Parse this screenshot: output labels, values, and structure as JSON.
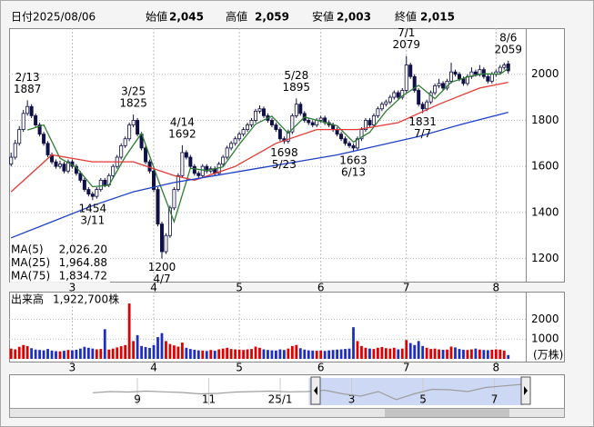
{
  "header": {
    "items": [
      {
        "label": "日付",
        "value": "2025/08/06",
        "color": "#000000"
      },
      {
        "label": "始値",
        "value": "2,045",
        "color": "#000000"
      },
      {
        "label": "高値",
        "value": "2,059",
        "color": "#e00000"
      },
      {
        "label": "安値",
        "value": "2,003",
        "color": "#008000"
      },
      {
        "label": "終値",
        "value": "2,015",
        "color": "#000000"
      }
    ]
  },
  "chart_data": [
    {
      "type": "candlestick",
      "up_color": "#ffffff",
      "down_color": "#101048",
      "xlim": [
        -0.5,
        126.3
      ],
      "xticks": [
        {
          "value": 15,
          "label": "3"
        },
        {
          "value": 35,
          "label": "4"
        },
        {
          "value": 56,
          "label": "5"
        },
        {
          "value": 76,
          "label": "6"
        },
        {
          "value": 97,
          "label": "7"
        },
        {
          "value": 119,
          "label": "8"
        }
      ],
      "ylim": [
        1100,
        2200
      ],
      "yticks": [
        1200,
        1400,
        1600,
        1800,
        2000
      ],
      "grid": true,
      "candles": [
        [
          1610,
          1660,
          1600,
          1640
        ],
        [
          1640,
          1715,
          1630,
          1700
        ],
        [
          1700,
          1775,
          1690,
          1760
        ],
        [
          1760,
          1845,
          1750,
          1830
        ],
        [
          1830,
          1887,
          1820,
          1860
        ],
        [
          1860,
          1870,
          1810,
          1820
        ],
        [
          1820,
          1830,
          1770,
          1780
        ],
        [
          1780,
          1790,
          1730,
          1740
        ],
        [
          1740,
          1750,
          1690,
          1700
        ],
        [
          1700,
          1710,
          1640,
          1650
        ],
        [
          1650,
          1660,
          1610,
          1620
        ],
        [
          1620,
          1630,
          1590,
          1600
        ],
        [
          1600,
          1625,
          1590,
          1610
        ],
        [
          1610,
          1620,
          1570,
          1580
        ],
        [
          1580,
          1630,
          1570,
          1620
        ],
        [
          1620,
          1630,
          1590,
          1600
        ],
        [
          1600,
          1610,
          1560,
          1570
        ],
        [
          1570,
          1580,
          1530,
          1540
        ],
        [
          1540,
          1550,
          1490,
          1500
        ],
        [
          1500,
          1510,
          1470,
          1480
        ],
        [
          1480,
          1490,
          1454,
          1470
        ],
        [
          1470,
          1510,
          1460,
          1500
        ],
        [
          1500,
          1550,
          1490,
          1540
        ],
        [
          1540,
          1550,
          1510,
          1520
        ],
        [
          1520,
          1570,
          1510,
          1560
        ],
        [
          1560,
          1610,
          1550,
          1600
        ],
        [
          1600,
          1650,
          1590,
          1640
        ],
        [
          1640,
          1700,
          1630,
          1690
        ],
        [
          1690,
          1730,
          1680,
          1720
        ],
        [
          1720,
          1790,
          1710,
          1780
        ],
        [
          1780,
          1825,
          1770,
          1800
        ],
        [
          1800,
          1810,
          1730,
          1740
        ],
        [
          1740,
          1750,
          1670,
          1680
        ],
        [
          1680,
          1690,
          1610,
          1620
        ],
        [
          1620,
          1630,
          1570,
          1580
        ],
        [
          1580,
          1590,
          1490,
          1500
        ],
        [
          1500,
          1510,
          1340,
          1350
        ],
        [
          1350,
          1360,
          1200,
          1230
        ],
        [
          1230,
          1310,
          1220,
          1300
        ],
        [
          1300,
          1430,
          1290,
          1420
        ],
        [
          1420,
          1510,
          1410,
          1500
        ],
        [
          1500,
          1570,
          1490,
          1560
        ],
        [
          1560,
          1692,
          1550,
          1660
        ],
        [
          1660,
          1670,
          1630,
          1640
        ],
        [
          1640,
          1650,
          1590,
          1600
        ],
        [
          1600,
          1610,
          1560,
          1570
        ],
        [
          1570,
          1580,
          1550,
          1560
        ],
        [
          1560,
          1610,
          1550,
          1600
        ],
        [
          1600,
          1610,
          1570,
          1580
        ],
        [
          1580,
          1600,
          1570,
          1590
        ],
        [
          1590,
          1600,
          1560,
          1570
        ],
        [
          1570,
          1620,
          1560,
          1610
        ],
        [
          1610,
          1650,
          1600,
          1640
        ],
        [
          1640,
          1690,
          1630,
          1680
        ],
        [
          1680,
          1710,
          1670,
          1700
        ],
        [
          1700,
          1730,
          1690,
          1720
        ],
        [
          1720,
          1750,
          1710,
          1740
        ],
        [
          1740,
          1770,
          1730,
          1760
        ],
        [
          1760,
          1790,
          1750,
          1780
        ],
        [
          1780,
          1810,
          1770,
          1800
        ],
        [
          1800,
          1850,
          1790,
          1840
        ],
        [
          1840,
          1865,
          1830,
          1850
        ],
        [
          1850,
          1860,
          1810,
          1820
        ],
        [
          1820,
          1830,
          1790,
          1800
        ],
        [
          1800,
          1810,
          1770,
          1780
        ],
        [
          1780,
          1790,
          1750,
          1760
        ],
        [
          1760,
          1770,
          1710,
          1720
        ],
        [
          1720,
          1730,
          1698,
          1710
        ],
        [
          1710,
          1760,
          1700,
          1750
        ],
        [
          1750,
          1830,
          1740,
          1820
        ],
        [
          1820,
          1895,
          1810,
          1870
        ],
        [
          1870,
          1880,
          1820,
          1830
        ],
        [
          1830,
          1840,
          1790,
          1800
        ],
        [
          1800,
          1810,
          1780,
          1790
        ],
        [
          1790,
          1800,
          1770,
          1780
        ],
        [
          1780,
          1810,
          1770,
          1800
        ],
        [
          1800,
          1820,
          1790,
          1810
        ],
        [
          1810,
          1820,
          1780,
          1790
        ],
        [
          1790,
          1800,
          1770,
          1780
        ],
        [
          1780,
          1790,
          1750,
          1760
        ],
        [
          1760,
          1770,
          1730,
          1740
        ],
        [
          1740,
          1750,
          1710,
          1720
        ],
        [
          1720,
          1730,
          1690,
          1700
        ],
        [
          1700,
          1710,
          1680,
          1690
        ],
        [
          1690,
          1700,
          1663,
          1680
        ],
        [
          1680,
          1730,
          1670,
          1720
        ],
        [
          1720,
          1770,
          1710,
          1760
        ],
        [
          1760,
          1810,
          1750,
          1800
        ],
        [
          1800,
          1810,
          1770,
          1780
        ],
        [
          1780,
          1830,
          1770,
          1820
        ],
        [
          1820,
          1860,
          1810,
          1850
        ],
        [
          1850,
          1880,
          1840,
          1870
        ],
        [
          1870,
          1890,
          1860,
          1880
        ],
        [
          1880,
          1910,
          1870,
          1900
        ],
        [
          1900,
          1930,
          1890,
          1920
        ],
        [
          1920,
          1930,
          1890,
          1900
        ],
        [
          1900,
          1940,
          1890,
          1930
        ],
        [
          1930,
          2079,
          1920,
          2040
        ],
        [
          2040,
          2050,
          1980,
          1990
        ],
        [
          1990,
          2000,
          1920,
          1930
        ],
        [
          1930,
          1940,
          1860,
          1870
        ],
        [
          1870,
          1880,
          1831,
          1850
        ],
        [
          1850,
          1890,
          1840,
          1880
        ],
        [
          1880,
          1930,
          1870,
          1920
        ],
        [
          1920,
          1960,
          1910,
          1950
        ],
        [
          1950,
          1980,
          1940,
          1960
        ],
        [
          1960,
          1970,
          1930,
          1940
        ],
        [
          1940,
          1980,
          1930,
          1970
        ],
        [
          1970,
          2050,
          1960,
          2010
        ],
        [
          2010,
          2020,
          1990,
          2000
        ],
        [
          2000,
          2010,
          1970,
          1980
        ],
        [
          1980,
          1990,
          1950,
          1960
        ],
        [
          1960,
          2000,
          1950,
          1990
        ],
        [
          1990,
          2030,
          1980,
          2010
        ],
        [
          2010,
          2020,
          1990,
          2000
        ],
        [
          2000,
          2040,
          1990,
          2020
        ],
        [
          2020,
          2030,
          1980,
          1990
        ],
        [
          1990,
          2000,
          1960,
          1970
        ],
        [
          1970,
          2010,
          1960,
          2000
        ],
        [
          2000,
          2020,
          1990,
          2010
        ],
        [
          2010,
          2040,
          2000,
          2030
        ],
        [
          2030,
          2050,
          2020,
          2040
        ],
        [
          2045,
          2059,
          2003,
          2015
        ]
      ],
      "series": [
        {
          "name": "MA(5)",
          "color": "#2e7d32",
          "last_label": "2,026.20",
          "x": [
            4,
            8,
            12,
            16,
            20,
            24,
            28,
            32,
            36,
            40,
            44,
            48,
            52,
            56,
            60,
            64,
            68,
            72,
            76,
            80,
            84,
            88,
            92,
            96,
            100,
            104,
            108,
            112,
            116,
            120,
            122
          ],
          "values": [
            1758,
            1780,
            1636,
            1596,
            1512,
            1518,
            1642,
            1744,
            1546,
            1360,
            1592,
            1582,
            1598,
            1696,
            1784,
            1818,
            1744,
            1814,
            1796,
            1776,
            1706,
            1748,
            1840,
            1906,
            1952,
            1894,
            1966,
            1988,
            2002,
            2000,
            2026.2
          ]
        },
        {
          "name": "MA(25)",
          "color": "#e53935",
          "last_label": "1,964.88",
          "x": [
            0,
            10,
            20,
            30,
            40,
            45,
            55,
            65,
            75,
            85,
            95,
            105,
            115,
            122
          ],
          "values": [
            1490,
            1650,
            1620,
            1620,
            1560,
            1540,
            1600,
            1700,
            1760,
            1760,
            1790,
            1870,
            1940,
            1964.88
          ]
        },
        {
          "name": "MA(75)",
          "color": "#1e40c8",
          "last_label": "1,834.72",
          "x": [
            0,
            10,
            20,
            30,
            40,
            50,
            60,
            70,
            80,
            90,
            100,
            110,
            122
          ],
          "values": [
            1290,
            1360,
            1430,
            1490,
            1530,
            1560,
            1590,
            1620,
            1650,
            1690,
            1730,
            1780,
            1834.72
          ]
        }
      ],
      "annotations": [
        {
          "x": 4,
          "label": "2/13",
          "value": 1887
        },
        {
          "x": 20,
          "label": "3/11",
          "value": 1454
        },
        {
          "x": 30,
          "label": "3/25",
          "value": 1825
        },
        {
          "x": 37,
          "label": "4/7",
          "value": 1200
        },
        {
          "x": 42,
          "label": "4/14",
          "value": 1692
        },
        {
          "x": 67,
          "label": "5/23",
          "value": 1698
        },
        {
          "x": 70,
          "label": "5/28",
          "value": 1895
        },
        {
          "x": 84,
          "label": "6/13",
          "value": 1663
        },
        {
          "x": 97,
          "label": "7/1",
          "value": 2079
        },
        {
          "x": 101,
          "label": "7/7",
          "value": 1831
        },
        {
          "x": 122,
          "label": "8/6",
          "value": 2059
        }
      ]
    },
    {
      "type": "bar",
      "title": "出来高",
      "subtitle": "1,922,700株",
      "unit": "(万株)",
      "up_color": "#e00000",
      "down_color": "#1e2fbf",
      "ylim": [
        0,
        3400
      ],
      "yticks": [
        1000,
        2000
      ],
      "grid": true,
      "values": [
        520,
        480,
        610,
        700,
        650,
        540,
        470,
        450,
        430,
        500,
        420,
        390,
        380,
        410,
        450,
        430,
        460,
        520,
        610,
        560,
        520,
        480,
        500,
        1500,
        470,
        520,
        580,
        640,
        700,
        2800,
        900,
        1200,
        650,
        600,
        550,
        700,
        1100,
        1300,
        900,
        750,
        680,
        620,
        820,
        560,
        500,
        460,
        430,
        420,
        400,
        450,
        410,
        480,
        520,
        560,
        500,
        480,
        470,
        450,
        480,
        500,
        620,
        560,
        480,
        450,
        430,
        420,
        480,
        450,
        520,
        650,
        700,
        540,
        470,
        430,
        420,
        410,
        420,
        400,
        430,
        450,
        470,
        480,
        500,
        520,
        1600,
        900,
        650,
        560,
        520,
        500,
        560,
        600,
        540,
        520,
        560,
        480,
        520,
        950,
        800,
        700,
        900,
        650,
        560,
        500,
        520,
        480,
        460,
        470,
        620,
        580,
        500,
        460,
        450,
        480,
        520,
        470,
        450,
        440,
        460,
        480,
        470,
        420,
        192.27
      ]
    },
    {
      "type": "area",
      "color": "#9e9e9e",
      "range_color": "#b8c8f0",
      "xlim": [
        7.7,
        19.8
      ],
      "ylim": [
        1100,
        2300
      ],
      "range": [
        13.8,
        19.8
      ],
      "xticks": [
        {
          "value": 9,
          "label": "9"
        },
        {
          "value": 11,
          "label": "11"
        },
        {
          "value": 13,
          "label": "25/1"
        },
        {
          "value": 15,
          "label": "3"
        },
        {
          "value": 17,
          "label": "5"
        },
        {
          "value": 19,
          "label": "7"
        }
      ],
      "x": [
        7.75,
        8.25,
        8.75,
        9.25,
        9.75,
        10.25,
        10.75,
        11.25,
        11.75,
        12.25,
        12.75,
        13.25,
        13.75,
        14.25,
        14.75,
        15.25,
        15.75,
        16.25,
        16.75,
        17.25,
        17.75,
        18.25,
        18.75,
        19.25,
        19.75
      ],
      "values": [
        1650,
        1700,
        1680,
        1720,
        1690,
        1660,
        1600,
        1620,
        1680,
        1700,
        1720,
        1690,
        1700,
        1760,
        1600,
        1500,
        1700,
        1350,
        1600,
        1800,
        1780,
        1700,
        1880,
        1950,
        2015
      ]
    }
  ]
}
